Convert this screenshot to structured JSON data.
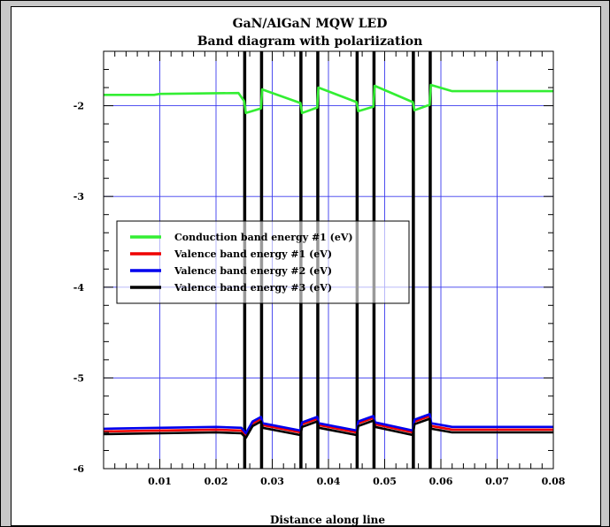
{
  "chart_data": {
    "type": "line",
    "title": "GaN/AlGaN MQW LED",
    "subtitle": "Band diagram with polariization",
    "xlabel": "Distance along line",
    "ylabel": "",
    "xlim": [
      0,
      0.08
    ],
    "ylim": [
      -6,
      -1.4
    ],
    "x_ticks": [
      0.01,
      0.02,
      0.03,
      0.04,
      0.05,
      0.06,
      0.07,
      0.08
    ],
    "y_ticks": [
      -2,
      -3,
      -4,
      -5,
      -6
    ],
    "grid": true,
    "legend_position": "center-left",
    "interfaces_x": [
      0.0251,
      0.0281,
      0.0351,
      0.0381,
      0.0451,
      0.0481,
      0.0551,
      0.0581
    ],
    "series": [
      {
        "name": "Conduction band energy #1 (eV)",
        "color": "#33ee33",
        "points": [
          [
            0,
            -1.88
          ],
          [
            0.009,
            -1.88
          ],
          [
            0.01,
            -1.87
          ],
          [
            0.024,
            -1.86
          ],
          [
            0.025,
            -1.95
          ],
          [
            0.0253,
            -2.08
          ],
          [
            0.028,
            -2.03
          ],
          [
            0.0282,
            -1.82
          ],
          [
            0.035,
            -1.97
          ],
          [
            0.0353,
            -2.08
          ],
          [
            0.038,
            -2.02
          ],
          [
            0.0382,
            -1.8
          ],
          [
            0.045,
            -1.96
          ],
          [
            0.0453,
            -2.06
          ],
          [
            0.048,
            -2.01
          ],
          [
            0.0482,
            -1.78
          ],
          [
            0.055,
            -1.96
          ],
          [
            0.0553,
            -2.05
          ],
          [
            0.058,
            -1.99
          ],
          [
            0.0582,
            -1.77
          ],
          [
            0.062,
            -1.84
          ],
          [
            0.07,
            -1.84
          ],
          [
            0.08,
            -1.84
          ]
        ]
      },
      {
        "name": "Valence band energy #1 (eV)",
        "color": "#ee0000",
        "points": [
          [
            0,
            -5.59
          ],
          [
            0.01,
            -5.58
          ],
          [
            0.02,
            -5.57
          ],
          [
            0.0245,
            -5.58
          ],
          [
            0.0253,
            -5.63
          ],
          [
            0.0265,
            -5.5
          ],
          [
            0.028,
            -5.45
          ],
          [
            0.0283,
            -5.52
          ],
          [
            0.035,
            -5.6
          ],
          [
            0.0353,
            -5.51
          ],
          [
            0.038,
            -5.45
          ],
          [
            0.0383,
            -5.52
          ],
          [
            0.045,
            -5.6
          ],
          [
            0.0453,
            -5.5
          ],
          [
            0.048,
            -5.44
          ],
          [
            0.0483,
            -5.51
          ],
          [
            0.055,
            -5.6
          ],
          [
            0.0553,
            -5.48
          ],
          [
            0.058,
            -5.42
          ],
          [
            0.0583,
            -5.53
          ],
          [
            0.062,
            -5.57
          ],
          [
            0.08,
            -5.57
          ]
        ]
      },
      {
        "name": "Valence band energy #2 (eV)",
        "color": "#0000ee",
        "points": [
          [
            0,
            -5.56
          ],
          [
            0.01,
            -5.55
          ],
          [
            0.02,
            -5.54
          ],
          [
            0.0245,
            -5.55
          ],
          [
            0.0253,
            -5.61
          ],
          [
            0.0265,
            -5.48
          ],
          [
            0.028,
            -5.43
          ],
          [
            0.0283,
            -5.5
          ],
          [
            0.035,
            -5.58
          ],
          [
            0.0353,
            -5.49
          ],
          [
            0.038,
            -5.43
          ],
          [
            0.0383,
            -5.5
          ],
          [
            0.045,
            -5.58
          ],
          [
            0.0453,
            -5.48
          ],
          [
            0.048,
            -5.42
          ],
          [
            0.0483,
            -5.49
          ],
          [
            0.055,
            -5.58
          ],
          [
            0.0553,
            -5.46
          ],
          [
            0.058,
            -5.4
          ],
          [
            0.0583,
            -5.5
          ],
          [
            0.062,
            -5.54
          ],
          [
            0.08,
            -5.54
          ]
        ]
      },
      {
        "name": "Valence band energy #3 (eV)",
        "color": "#000000",
        "points": [
          [
            0,
            -5.62
          ],
          [
            0.01,
            -5.61
          ],
          [
            0.02,
            -5.6
          ],
          [
            0.0245,
            -5.61
          ],
          [
            0.0253,
            -5.66
          ],
          [
            0.0265,
            -5.53
          ],
          [
            0.028,
            -5.48
          ],
          [
            0.0283,
            -5.55
          ],
          [
            0.035,
            -5.63
          ],
          [
            0.0353,
            -5.54
          ],
          [
            0.038,
            -5.48
          ],
          [
            0.0383,
            -5.55
          ],
          [
            0.045,
            -5.63
          ],
          [
            0.0453,
            -5.53
          ],
          [
            0.048,
            -5.47
          ],
          [
            0.0483,
            -5.54
          ],
          [
            0.055,
            -5.63
          ],
          [
            0.0553,
            -5.51
          ],
          [
            0.058,
            -5.45
          ],
          [
            0.0583,
            -5.56
          ],
          [
            0.062,
            -5.6
          ],
          [
            0.08,
            -5.6
          ]
        ]
      }
    ]
  }
}
